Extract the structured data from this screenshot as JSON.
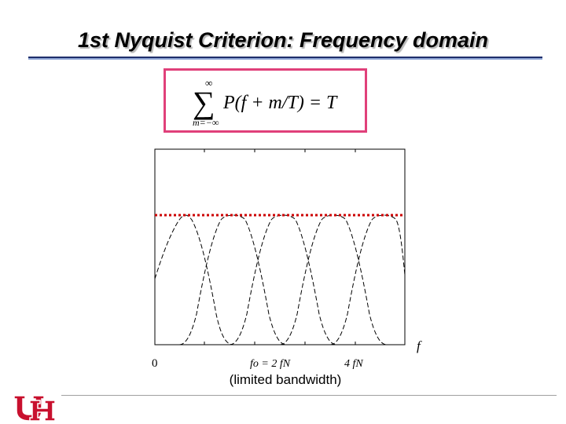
{
  "slide": {
    "title": "1st Nyquist Criterion: Frequency domain",
    "caption": "(limited bandwidth)"
  },
  "formula": {
    "sum_upper": "∞",
    "sum_lower": "m=−∞",
    "sigma": "∑",
    "expression": "P(f + m/T) = T"
  },
  "figure": {
    "axis_label": "f",
    "tick_zero": "0",
    "tick_fo": "fo = 2 fN",
    "tick_4fn": "4 fN"
  },
  "colors": {
    "accent": "#e0407a",
    "dotted_line": "#cc0000",
    "title_rule": "#1f2f6b",
    "logo": "#c8102e"
  },
  "logo": {
    "icon": "uh-interlocking-logo"
  }
}
